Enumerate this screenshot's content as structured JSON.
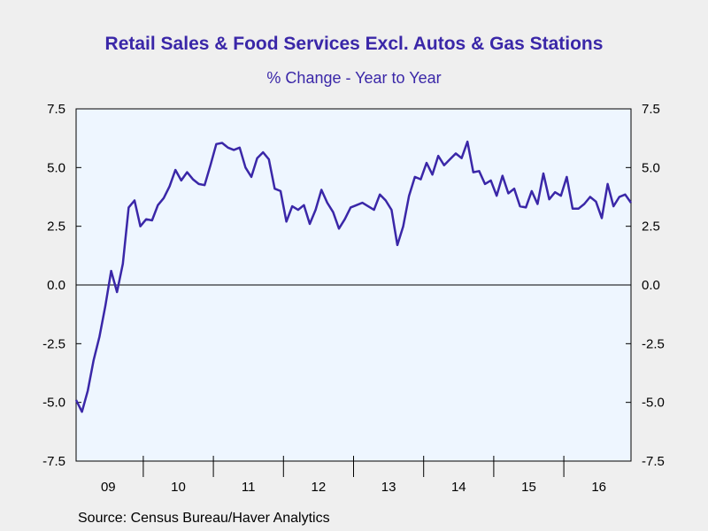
{
  "chart_data": {
    "type": "line",
    "title": "Retail Sales & Food Services Excl. Autos & Gas Stations",
    "subtitle": "% Change - Year to Year",
    "source": "Source:  Census Bureau/Haver Analytics",
    "xlabel": "",
    "ylabel": "",
    "ylim": [
      -7.5,
      7.5
    ],
    "y_ticks": [
      7.5,
      5.0,
      2.5,
      0.0,
      -2.5,
      -5.0,
      -7.5
    ],
    "y_tick_labels": [
      "7.5",
      "5.0",
      "2.5",
      "0.0",
      "-2.5",
      "-5.0",
      "-7.5"
    ],
    "right_axis": true,
    "x_start": "2009-01",
    "x_end": "2016-12",
    "x_tick_labels": [
      "09",
      "10",
      "11",
      "12",
      "13",
      "14",
      "15",
      "16"
    ],
    "zero_line": true,
    "grid": false,
    "colors": {
      "line": "#3a27a8",
      "plot_background": "#eef6ff",
      "page_background": "#efefef",
      "title": "#3a27a8"
    },
    "series": [
      {
        "name": "",
        "x": [
          "2009-01",
          "2009-02",
          "2009-03",
          "2009-04",
          "2009-05",
          "2009-06",
          "2009-07",
          "2009-08",
          "2009-09",
          "2009-10",
          "2009-11",
          "2009-12",
          "2010-01",
          "2010-02",
          "2010-03",
          "2010-04",
          "2010-05",
          "2010-06",
          "2010-07",
          "2010-08",
          "2010-09",
          "2010-10",
          "2010-11",
          "2010-12",
          "2011-01",
          "2011-02",
          "2011-03",
          "2011-04",
          "2011-05",
          "2011-06",
          "2011-07",
          "2011-08",
          "2011-09",
          "2011-10",
          "2011-11",
          "2011-12",
          "2012-01",
          "2012-02",
          "2012-03",
          "2012-04",
          "2012-05",
          "2012-06",
          "2012-07",
          "2012-08",
          "2012-09",
          "2012-10",
          "2012-11",
          "2012-12",
          "2013-01",
          "2013-02",
          "2013-03",
          "2013-04",
          "2013-05",
          "2013-06",
          "2013-07",
          "2013-08",
          "2013-09",
          "2013-10",
          "2013-11",
          "2013-12",
          "2014-01",
          "2014-02",
          "2014-03",
          "2014-04",
          "2014-05",
          "2014-06",
          "2014-07",
          "2014-08",
          "2014-09",
          "2014-10",
          "2014-11",
          "2014-12",
          "2015-01",
          "2015-02",
          "2015-03",
          "2015-04",
          "2015-05",
          "2015-06",
          "2015-07",
          "2015-08",
          "2015-09",
          "2015-10",
          "2015-11",
          "2015-12",
          "2016-01",
          "2016-02",
          "2016-03",
          "2016-04",
          "2016-05",
          "2016-06",
          "2016-07",
          "2016-08",
          "2016-09",
          "2016-10",
          "2016-11",
          "2016-12"
        ],
        "values": [
          -4.9,
          -5.4,
          -4.5,
          -3.2,
          -2.2,
          -0.9,
          0.6,
          -0.3,
          0.9,
          3.3,
          3.6,
          2.5,
          2.8,
          2.75,
          3.4,
          3.7,
          4.2,
          4.9,
          4.45,
          4.8,
          4.5,
          4.3,
          4.25,
          5.1,
          6.0,
          6.05,
          5.85,
          5.75,
          5.85,
          5.0,
          4.6,
          5.4,
          5.65,
          5.35,
          4.1,
          4.0,
          2.7,
          3.35,
          3.2,
          3.4,
          2.6,
          3.2,
          4.05,
          3.5,
          3.1,
          2.4,
          2.8,
          3.3,
          3.4,
          3.5,
          3.35,
          3.2,
          3.85,
          3.6,
          3.2,
          1.7,
          2.5,
          3.8,
          4.6,
          4.5,
          5.2,
          4.7,
          5.5,
          5.1,
          5.35,
          5.6,
          5.4,
          6.1,
          4.8,
          4.85,
          4.3,
          4.45,
          3.8,
          4.65,
          3.9,
          4.1,
          3.35,
          3.3,
          4.0,
          3.45,
          4.75,
          3.65,
          3.95,
          3.8,
          4.6,
          3.25,
          3.25,
          3.45,
          3.75,
          3.55,
          2.85,
          4.3,
          3.35,
          3.75,
          3.85,
          3.5
        ]
      }
    ]
  }
}
